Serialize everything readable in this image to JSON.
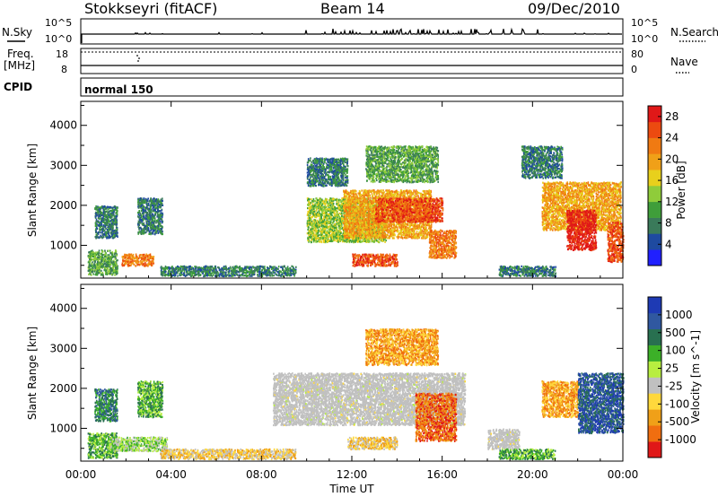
{
  "header": {
    "station": "Stokkseyri (fitACF)",
    "beam": "Beam 14",
    "date": "09/Dec/2010"
  },
  "strip": {
    "nsky_label": "N.Sky",
    "nsky_tick_top": "10^5",
    "nsky_tick_bottom": "10^0",
    "nsearch_label": "N.Search",
    "freq_label": "Freq.",
    "freq_unit": "[MHz]",
    "freq_tick_top": "18",
    "freq_tick_bottom": "8",
    "nave_tick_top": "80",
    "nave_tick_bottom": "0",
    "nave_label": "Nave",
    "cpid_label": "CPID",
    "cpid_value": "normal 150"
  },
  "chart_data": [
    {
      "type": "heatmap",
      "name": "Power",
      "xlabel": "",
      "ylabel": "Slant Range [km]",
      "x_ticks": [
        "00:00",
        "04:00",
        "08:00",
        "12:00",
        "16:00",
        "20:00",
        "00:00"
      ],
      "x_range_hours": [
        0,
        24
      ],
      "y_ticks": [
        1000,
        2000,
        3000,
        4000
      ],
      "ylim": [
        180,
        4600
      ],
      "colorbar": {
        "label": "Power [dB]",
        "tick_labels": [
          "4",
          "8",
          "12",
          "16",
          "20",
          "24",
          "28"
        ],
        "range": [
          0,
          30
        ],
        "colors": [
          "#2020ff",
          "#1e4aa0",
          "#3a7a5a",
          "#3f9e3a",
          "#8fcc3a",
          "#e8d01c",
          "#f0a018",
          "#f07a12",
          "#ec4a10",
          "#e01818"
        ]
      },
      "echo_regions": [
        {
          "t0": 0.3,
          "t1": 1.6,
          "r0": 280,
          "r1": 900,
          "power": 9
        },
        {
          "t0": 1.8,
          "t1": 3.2,
          "r0": 500,
          "r1": 800,
          "power": 22
        },
        {
          "t0": 0.6,
          "t1": 1.6,
          "r0": 1200,
          "r1": 2000,
          "power": 8
        },
        {
          "t0": 2.5,
          "t1": 3.6,
          "r0": 1300,
          "r1": 2200,
          "power": 8
        },
        {
          "t0": 3.5,
          "t1": 9.5,
          "r0": 250,
          "r1": 500,
          "power": 6
        },
        {
          "t0": 10,
          "t1": 13.5,
          "r0": 1100,
          "r1": 2200,
          "power": 12
        },
        {
          "t0": 11.6,
          "t1": 15.5,
          "r0": 1200,
          "r1": 2400,
          "power": 18
        },
        {
          "t0": 13,
          "t1": 16,
          "r0": 1600,
          "r1": 2200,
          "power": 24
        },
        {
          "t0": 12,
          "t1": 14,
          "r0": 500,
          "r1": 800,
          "power": 26
        },
        {
          "t0": 15.4,
          "t1": 16.6,
          "r0": 700,
          "r1": 1400,
          "power": 22
        },
        {
          "t0": 10,
          "t1": 11.8,
          "r0": 2500,
          "r1": 3200,
          "power": 7
        },
        {
          "t0": 12.6,
          "t1": 15.8,
          "r0": 2600,
          "r1": 3500,
          "power": 11
        },
        {
          "t0": 20.4,
          "t1": 23.9,
          "r0": 1400,
          "r1": 2600,
          "power": 20
        },
        {
          "t0": 21.5,
          "t1": 22.8,
          "r0": 900,
          "r1": 1900,
          "power": 27
        },
        {
          "t0": 23.3,
          "t1": 24,
          "r0": 600,
          "r1": 1600,
          "power": 24
        },
        {
          "t0": 18.5,
          "t1": 21,
          "r0": 250,
          "r1": 500,
          "power": 8
        },
        {
          "t0": 19.5,
          "t1": 21.3,
          "r0": 2700,
          "r1": 3500,
          "power": 6
        }
      ]
    },
    {
      "type": "heatmap",
      "name": "Velocity",
      "xlabel": "Time UT",
      "ylabel": "Slant Range [km]",
      "x_ticks": [
        "00:00",
        "04:00",
        "08:00",
        "12:00",
        "16:00",
        "20:00",
        "00:00"
      ],
      "x_range_hours": [
        0,
        24
      ],
      "y_ticks": [
        1000,
        2000,
        3000,
        4000
      ],
      "ylim": [
        180,
        4600
      ],
      "colorbar": {
        "label": "Velocity [m s^-1]",
        "tick_labels": [
          "1000",
          "500",
          "100",
          "25",
          "-25",
          "-100",
          "-500",
          "-1000"
        ],
        "ground_scatter_color": "#c0c0c0",
        "colors": [
          "#1e3ab4",
          "#3058a0",
          "#287050",
          "#3cb028",
          "#b8ee40",
          "#c0c0c0",
          "#ffd83c",
          "#f0a018",
          "#f06e10",
          "#e01818"
        ]
      },
      "echo_regions": [
        {
          "t0": 0.3,
          "t1": 1.6,
          "r0": 280,
          "r1": 900,
          "vel": 120,
          "color_index": 3
        },
        {
          "t0": 1.2,
          "t1": 3.8,
          "r0": 450,
          "r1": 800,
          "vel": 40,
          "color_index": 4
        },
        {
          "t0": 0.6,
          "t1": 1.6,
          "r0": 1200,
          "r1": 2000,
          "vel": 200,
          "color_index": 2
        },
        {
          "t0": 2.5,
          "t1": 3.6,
          "r0": 1300,
          "r1": 2200,
          "vel": 120,
          "color_index": 3
        },
        {
          "t0": 3.5,
          "t1": 9.5,
          "r0": 250,
          "r1": 500,
          "vel": -40,
          "color_index": 6
        },
        {
          "t0": 8.5,
          "t1": 17,
          "r0": 1100,
          "r1": 2400,
          "vel": 0,
          "color_index": 5
        },
        {
          "t0": 14.8,
          "t1": 16.6,
          "r0": 700,
          "r1": 1900,
          "vel": -300,
          "color_index": 8
        },
        {
          "t0": 11.8,
          "t1": 14,
          "r0": 500,
          "r1": 800,
          "vel": -60,
          "color_index": 6
        },
        {
          "t0": 18,
          "t1": 19.4,
          "r0": 500,
          "r1": 1000,
          "vel": 0,
          "color_index": 5
        },
        {
          "t0": 20.4,
          "t1": 22,
          "r0": 1300,
          "r1": 2200,
          "vel": -200,
          "color_index": 7
        },
        {
          "t0": 22,
          "t1": 24,
          "r0": 900,
          "r1": 2400,
          "vel": 300,
          "color_index": 1
        },
        {
          "t0": 12.6,
          "t1": 15.8,
          "r0": 2600,
          "r1": 3500,
          "vel": -200,
          "color_index": 7
        },
        {
          "t0": 18.5,
          "t1": 21,
          "r0": 250,
          "r1": 500,
          "vel": 60,
          "color_index": 3
        }
      ]
    }
  ]
}
